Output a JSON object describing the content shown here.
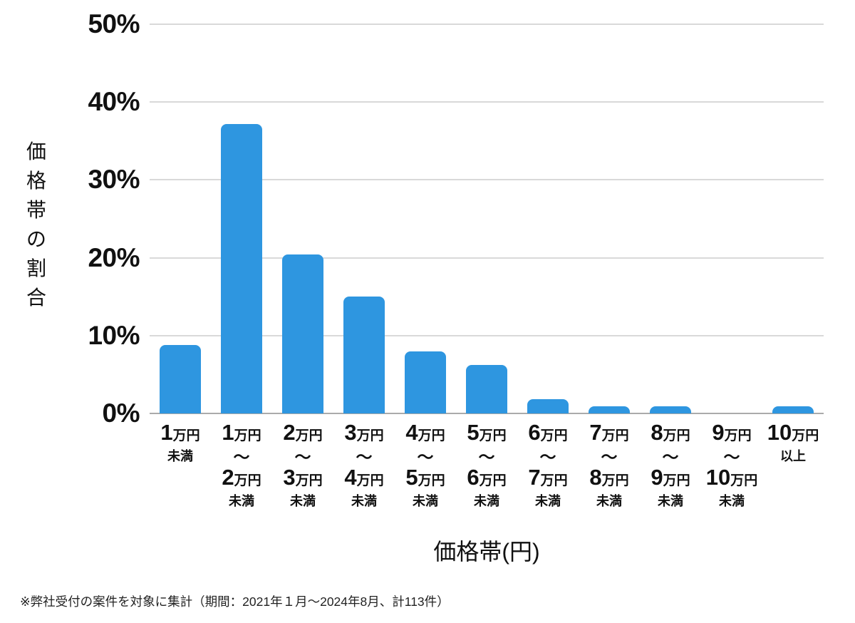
{
  "chart_data": {
    "type": "bar",
    "title": "",
    "xlabel": "価格帯(円)",
    "ylabel": "価格帯の割合",
    "ylim": [
      0,
      50
    ],
    "yticks_top_to_bottom": [
      "50%",
      "40%",
      "30%",
      "20%",
      "10%",
      "0%"
    ],
    "grid": true,
    "legend_position": "none",
    "bar_color": "#2E96E0",
    "gridline_color": "#D9D9D9",
    "baseline_color": "#AAAAAA",
    "text_color": "#111111",
    "categories": [
      {
        "label": "1万円未満",
        "lines": [
          {
            "kind": "main",
            "num": "1",
            "unit": "万円"
          },
          {
            "kind": "qual",
            "text": "未満"
          }
        ]
      },
      {
        "label": "1万円〜2万円未満",
        "lines": [
          {
            "kind": "main",
            "num": "1",
            "unit": "万円"
          },
          {
            "kind": "tilde",
            "text": "〜"
          },
          {
            "kind": "main",
            "num": "2",
            "unit": "万円"
          },
          {
            "kind": "qual",
            "text": "未満"
          }
        ]
      },
      {
        "label": "2万円〜3万円未満",
        "lines": [
          {
            "kind": "main",
            "num": "2",
            "unit": "万円"
          },
          {
            "kind": "tilde",
            "text": "〜"
          },
          {
            "kind": "main",
            "num": "3",
            "unit": "万円"
          },
          {
            "kind": "qual",
            "text": "未満"
          }
        ]
      },
      {
        "label": "3万円〜4万円未満",
        "lines": [
          {
            "kind": "main",
            "num": "3",
            "unit": "万円"
          },
          {
            "kind": "tilde",
            "text": "〜"
          },
          {
            "kind": "main",
            "num": "4",
            "unit": "万円"
          },
          {
            "kind": "qual",
            "text": "未満"
          }
        ]
      },
      {
        "label": "4万円〜5万円未満",
        "lines": [
          {
            "kind": "main",
            "num": "4",
            "unit": "万円"
          },
          {
            "kind": "tilde",
            "text": "〜"
          },
          {
            "kind": "main",
            "num": "5",
            "unit": "万円"
          },
          {
            "kind": "qual",
            "text": "未満"
          }
        ]
      },
      {
        "label": "5万円〜6万円未満",
        "lines": [
          {
            "kind": "main",
            "num": "5",
            "unit": "万円"
          },
          {
            "kind": "tilde",
            "text": "〜"
          },
          {
            "kind": "main",
            "num": "6",
            "unit": "万円"
          },
          {
            "kind": "qual",
            "text": "未満"
          }
        ]
      },
      {
        "label": "6万円〜7万円未満",
        "lines": [
          {
            "kind": "main",
            "num": "6",
            "unit": "万円"
          },
          {
            "kind": "tilde",
            "text": "〜"
          },
          {
            "kind": "main",
            "num": "7",
            "unit": "万円"
          },
          {
            "kind": "qual",
            "text": "未満"
          }
        ]
      },
      {
        "label": "7万円〜8万円未満",
        "lines": [
          {
            "kind": "main",
            "num": "7",
            "unit": "万円"
          },
          {
            "kind": "tilde",
            "text": "〜"
          },
          {
            "kind": "main",
            "num": "8",
            "unit": "万円"
          },
          {
            "kind": "qual",
            "text": "未満"
          }
        ]
      },
      {
        "label": "8万円〜9万円未満",
        "lines": [
          {
            "kind": "main",
            "num": "8",
            "unit": "万円"
          },
          {
            "kind": "tilde",
            "text": "〜"
          },
          {
            "kind": "main",
            "num": "9",
            "unit": "万円"
          },
          {
            "kind": "qual",
            "text": "未満"
          }
        ]
      },
      {
        "label": "9万円〜10万円未満",
        "lines": [
          {
            "kind": "main",
            "num": "9",
            "unit": "万円"
          },
          {
            "kind": "tilde",
            "text": "〜"
          },
          {
            "kind": "main",
            "num": "10",
            "unit": "万円"
          },
          {
            "kind": "qual",
            "text": "未満"
          }
        ]
      },
      {
        "label": "10万円以上",
        "lines": [
          {
            "kind": "main",
            "num": "10",
            "unit": "万円"
          },
          {
            "kind": "qual",
            "text": "以上"
          }
        ]
      }
    ],
    "values": [
      8.8,
      37.2,
      20.4,
      15.0,
      8.0,
      6.2,
      1.8,
      0.9,
      0.9,
      0,
      0.9
    ]
  },
  "footnote": "※弊社受付の案件を対象に集計（期間：2021年１月～2024年8月、計113件）"
}
